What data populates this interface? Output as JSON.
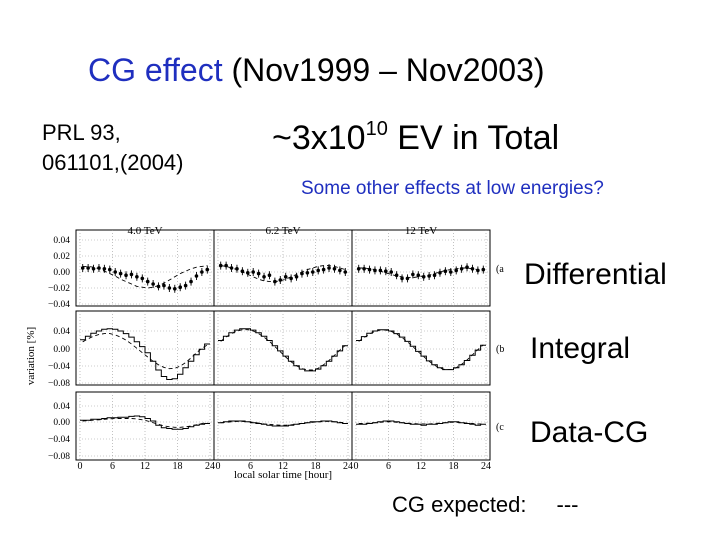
{
  "slide": {
    "title_blue": "CG effect",
    "title_rest": "(Nov1999 – Nov2003)",
    "ref_line1": "PRL  93,",
    "ref_line2": "061101,(2004)",
    "total_prefix": "~3x10",
    "total_exp": "10",
    "total_suffix": " EV in Total",
    "other_effects": "Some other effects at low energies?",
    "label_differential": "Differential",
    "label_integral": "Integral",
    "label_datacg": "Data-CG",
    "expected_text": "CG expected:",
    "expected_dash": "---"
  },
  "colors": {
    "blue": "#1f2fbf",
    "ink": "#000000"
  },
  "chart_data": {
    "type": "line",
    "ylabel": "variation [%]",
    "xlabel": "local solar time [hour]",
    "energy_labels": [
      "4.0 TeV",
      "6.2 TeV",
      "12 TeV"
    ],
    "x_ticks": [
      0,
      6,
      12,
      18,
      24
    ],
    "panel_tags": [
      "(a",
      "(b",
      "(c"
    ],
    "grid": true,
    "panels": [
      {
        "name": "differential",
        "ylim": [
          -0.04,
          0.04
        ],
        "yticks": [
          "0.04",
          "0.02",
          "0.00",
          "−0.02",
          "−0.04"
        ],
        "series": [
          {
            "energy": "4.0 TeV",
            "kind": "data",
            "values": [
              0.005,
              0.005,
              0.004,
              0.005,
              0.004,
              0.003,
              0.0,
              -0.002,
              -0.004,
              -0.003,
              -0.006,
              -0.008,
              -0.012,
              -0.015,
              -0.018,
              -0.017,
              -0.02,
              -0.021,
              -0.019,
              -0.017,
              -0.012,
              -0.005,
              0.0,
              0.003
            ]
          },
          {
            "energy": "4.0 TeV",
            "kind": "expected",
            "values": [
              0.007,
              0.007,
              0.006,
              0.004,
              0.001,
              -0.002,
              -0.005,
              -0.009,
              -0.012,
              -0.015,
              -0.018,
              -0.019,
              -0.02,
              -0.019,
              -0.017,
              -0.014,
              -0.01,
              -0.006,
              -0.002,
              0.001,
              0.004,
              0.006,
              0.007,
              0.008
            ]
          },
          {
            "energy": "6.2 TeV",
            "kind": "data",
            "values": [
              0.008,
              0.008,
              0.005,
              0.004,
              0.001,
              -0.001,
              0.0,
              -0.002,
              -0.006,
              -0.004,
              -0.012,
              -0.01,
              -0.006,
              -0.008,
              -0.006,
              -0.002,
              -0.001,
              0.0,
              0.002,
              0.003,
              0.005,
              0.004,
              0.002,
              0.0
            ]
          },
          {
            "energy": "6.2 TeV",
            "kind": "expected",
            "values": [
              0.008,
              0.007,
              0.005,
              0.003,
              0.0,
              -0.003,
              -0.006,
              -0.009,
              -0.011,
              -0.012,
              -0.012,
              -0.011,
              -0.009,
              -0.006,
              -0.003,
              0.0,
              0.003,
              0.005,
              0.007,
              0.008,
              0.008,
              0.007,
              0.005,
              0.003
            ]
          },
          {
            "energy": "12 TeV",
            "kind": "data",
            "values": [
              0.004,
              0.004,
              0.003,
              0.002,
              0.002,
              0.001,
              0.0,
              -0.004,
              -0.008,
              -0.008,
              -0.003,
              -0.004,
              -0.006,
              -0.005,
              -0.004,
              -0.001,
              0.001,
              0.0,
              0.002,
              0.004,
              0.006,
              0.004,
              0.002,
              0.003
            ]
          },
          {
            "energy": "12 TeV",
            "kind": "expected",
            "values": [
              0.005,
              0.005,
              0.004,
              0.003,
              0.001,
              -0.001,
              -0.003,
              -0.005,
              -0.006,
              -0.007,
              -0.007,
              -0.006,
              -0.005,
              -0.004,
              -0.002,
              0.0,
              0.002,
              0.003,
              0.004,
              0.005,
              0.005,
              0.004,
              0.003,
              0.002
            ]
          }
        ]
      },
      {
        "name": "integral",
        "ylim": [
          -0.08,
          0.06
        ],
        "yticks": [
          "0.04",
          "0.00",
          "−0.04",
          "−0.08"
        ],
        "series": [
          {
            "energy": "4.0 TeV",
            "kind": "data",
            "values": [
              0.02,
              0.028,
              0.035,
              0.04,
              0.044,
              0.045,
              0.044,
              0.04,
              0.034,
              0.026,
              0.015,
              0.004,
              -0.01,
              -0.03,
              -0.05,
              -0.065,
              -0.072,
              -0.07,
              -0.06,
              -0.045,
              -0.03,
              -0.015,
              -0.002,
              0.01
            ]
          },
          {
            "energy": "4.0 TeV",
            "kind": "expected",
            "values": [
              0.015,
              0.022,
              0.028,
              0.032,
              0.034,
              0.034,
              0.031,
              0.026,
              0.019,
              0.01,
              0.0,
              -0.01,
              -0.02,
              -0.03,
              -0.038,
              -0.044,
              -0.047,
              -0.046,
              -0.041,
              -0.033,
              -0.022,
              -0.01,
              0.0,
              0.008
            ]
          },
          {
            "energy": "6.2 TeV",
            "kind": "data",
            "values": [
              0.018,
              0.028,
              0.036,
              0.042,
              0.045,
              0.045,
              0.042,
              0.036,
              0.028,
              0.018,
              0.006,
              -0.006,
              -0.018,
              -0.03,
              -0.04,
              -0.048,
              -0.052,
              -0.052,
              -0.048,
              -0.04,
              -0.03,
              -0.018,
              -0.006,
              0.006
            ]
          },
          {
            "energy": "6.2 TeV",
            "kind": "expected",
            "values": [
              0.016,
              0.026,
              0.034,
              0.04,
              0.043,
              0.043,
              0.04,
              0.034,
              0.026,
              0.016,
              0.004,
              -0.008,
              -0.02,
              -0.031,
              -0.04,
              -0.047,
              -0.05,
              -0.05,
              -0.046,
              -0.038,
              -0.028,
              -0.016,
              -0.004,
              0.007
            ]
          },
          {
            "energy": "12 TeV",
            "kind": "data",
            "values": [
              0.018,
              0.027,
              0.035,
              0.04,
              0.043,
              0.043,
              0.04,
              0.034,
              0.026,
              0.016,
              0.005,
              -0.007,
              -0.018,
              -0.029,
              -0.038,
              -0.045,
              -0.049,
              -0.049,
              -0.045,
              -0.038,
              -0.028,
              -0.016,
              -0.004,
              0.007
            ]
          },
          {
            "energy": "12 TeV",
            "kind": "expected",
            "values": [
              0.016,
              0.025,
              0.033,
              0.039,
              0.042,
              0.042,
              0.039,
              0.033,
              0.025,
              0.015,
              0.004,
              -0.008,
              -0.019,
              -0.03,
              -0.039,
              -0.046,
              -0.049,
              -0.049,
              -0.045,
              -0.037,
              -0.027,
              -0.015,
              -0.003,
              0.008
            ]
          }
        ]
      },
      {
        "name": "data-cg",
        "ylim": [
          -0.08,
          0.06
        ],
        "yticks": [
          "0.04",
          "0.00",
          "−0.04",
          "−0.08"
        ],
        "series": [
          {
            "energy": "4.0 TeV",
            "kind": "data",
            "values": [
              0.006,
              0.006,
              0.008,
              0.008,
              0.01,
              0.012,
              0.012,
              0.013,
              0.013,
              0.015,
              0.016,
              0.014,
              0.01,
              0.004,
              -0.006,
              -0.012,
              -0.014,
              -0.016,
              -0.016,
              -0.014,
              -0.01,
              -0.006,
              -0.004,
              -0.002
            ]
          },
          {
            "energy": "4.0 TeV",
            "kind": "expected",
            "values": [
              0.004,
              0.005,
              0.006,
              0.007,
              0.008,
              0.009,
              0.01,
              0.01,
              0.01,
              0.01,
              0.009,
              0.007,
              0.004,
              0.0,
              -0.004,
              -0.008,
              -0.01,
              -0.011,
              -0.011,
              -0.01,
              -0.008,
              -0.005,
              -0.002,
              0.001
            ]
          },
          {
            "energy": "6.2 TeV",
            "kind": "data",
            "values": [
              0.0,
              0.002,
              0.004,
              0.004,
              0.004,
              0.002,
              0.0,
              -0.002,
              -0.004,
              -0.006,
              -0.008,
              -0.008,
              -0.008,
              -0.006,
              -0.004,
              -0.002,
              0.0,
              0.002,
              0.002,
              0.004,
              0.004,
              0.002,
              0.0,
              -0.002
            ]
          },
          {
            "energy": "6.2 TeV",
            "kind": "expected",
            "values": [
              0.0,
              0.001,
              0.002,
              0.003,
              0.003,
              0.002,
              0.001,
              -0.001,
              -0.003,
              -0.004,
              -0.005,
              -0.006,
              -0.006,
              -0.005,
              -0.004,
              -0.002,
              0.0,
              0.001,
              0.002,
              0.003,
              0.003,
              0.002,
              0.001,
              0.0
            ]
          },
          {
            "energy": "12 TeV",
            "kind": "data",
            "values": [
              -0.004,
              -0.004,
              -0.002,
              0.0,
              0.002,
              0.004,
              0.004,
              0.002,
              0.0,
              -0.002,
              -0.004,
              -0.004,
              -0.006,
              -0.004,
              -0.004,
              -0.002,
              0.0,
              0.002,
              0.002,
              0.0,
              -0.002,
              -0.004,
              -0.006,
              -0.004
            ]
          },
          {
            "energy": "12 TeV",
            "kind": "expected",
            "values": [
              -0.002,
              -0.002,
              -0.001,
              0.0,
              0.001,
              0.002,
              0.002,
              0.001,
              0.0,
              -0.001,
              -0.002,
              -0.003,
              -0.003,
              -0.003,
              -0.002,
              -0.001,
              0.0,
              0.001,
              0.001,
              0.0,
              -0.001,
              -0.002,
              -0.003,
              -0.003
            ]
          }
        ]
      }
    ]
  }
}
